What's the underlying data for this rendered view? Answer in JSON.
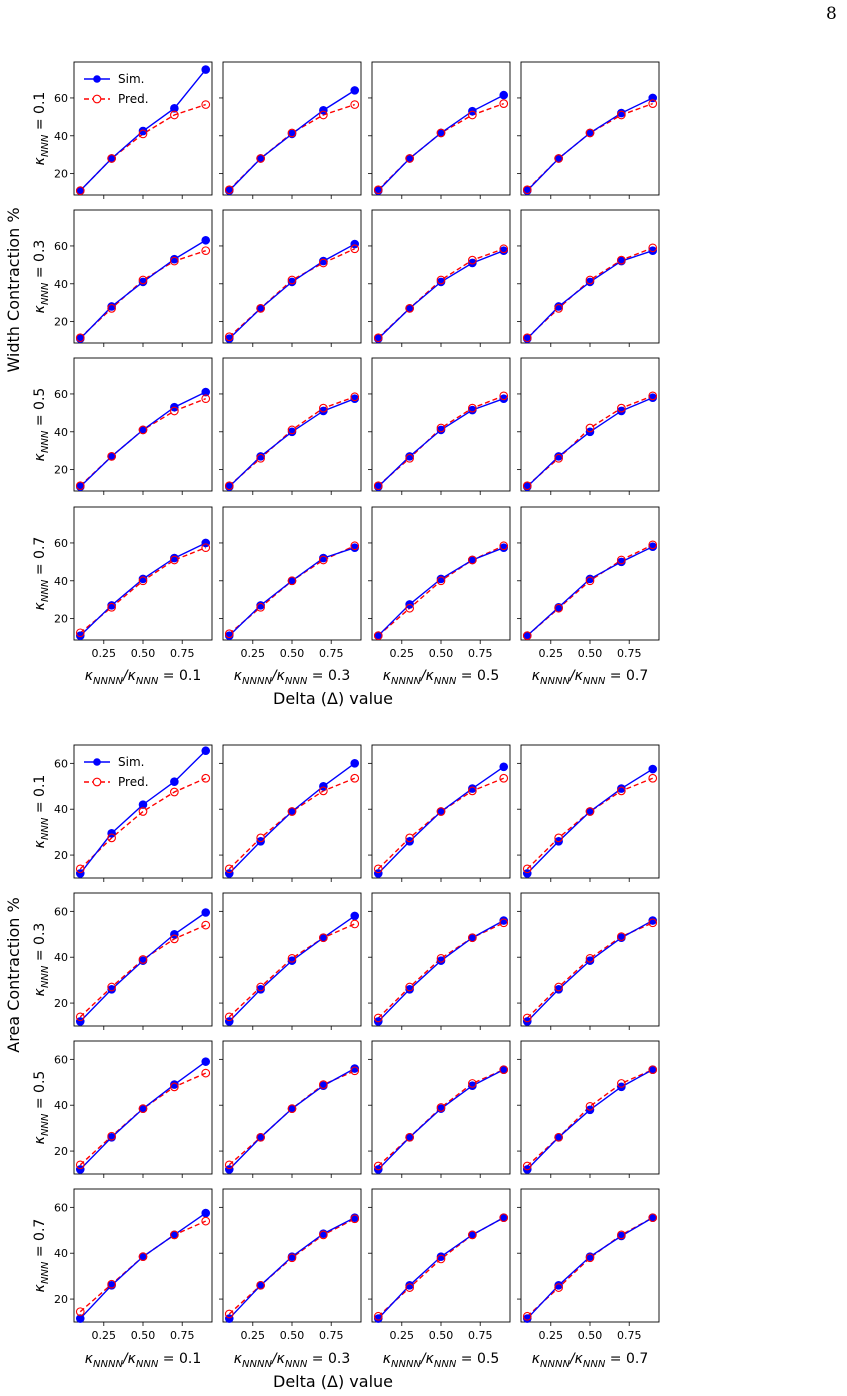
{
  "page_number": "8",
  "colors": {
    "sim": "#0000ff",
    "pred": "#ff0000"
  },
  "chart_data": [
    {
      "type": "line",
      "title": "",
      "ylabel": "Width Contraction %",
      "xlabel": "Delta (Δ) value",
      "row_labels": [
        {
          "sym": "κ",
          "sub": "NNN",
          "rest": " = 0.1"
        },
        {
          "sym": "κ",
          "sub": "NNN",
          "rest": " = 0.3"
        },
        {
          "sym": "κ",
          "sub": "NNN",
          "rest": " = 0.5"
        },
        {
          "sym": "κ",
          "sub": "NNN",
          "rest": " = 0.7"
        }
      ],
      "col_labels": [
        {
          "a": "κ",
          "asub": "NNNN",
          "b": "/κ",
          "bsub": "NNN",
          "rest": " = 0.1"
        },
        {
          "a": "κ",
          "asub": "NNNN",
          "b": "/κ",
          "bsub": "NNN",
          "rest": " = 0.3"
        },
        {
          "a": "κ",
          "asub": "NNNN",
          "b": "/κ",
          "bsub": "NNN",
          "rest": " = 0.5"
        },
        {
          "a": "κ",
          "asub": "NNNN",
          "b": "/κ",
          "bsub": "NNN",
          "rest": " = 0.7"
        }
      ],
      "x": [
        0.1,
        0.3,
        0.5,
        0.7,
        0.9
      ],
      "xticks": [
        0.25,
        0.5,
        0.75
      ],
      "xtick_labels": [
        "0.25",
        "0.50",
        "0.75"
      ],
      "xlim": [
        0.06,
        0.94
      ],
      "ylim": [
        8.7,
        79
      ],
      "yticks": [
        20,
        40,
        60
      ],
      "ytick_labels": [
        "20",
        "40",
        "60"
      ],
      "legend": {
        "placement": "top-left",
        "entries": [
          "Sim.",
          "Pred."
        ]
      },
      "grid": false,
      "panels": [
        [
          {
            "sim": [
              11,
              28,
              42.5,
              54.5,
              75
            ],
            "pred": [
              11,
              28,
              41,
              51,
              56.5
            ]
          },
          {
            "sim": [
              11,
              28,
              41,
              53.5,
              64
            ],
            "pred": [
              11.5,
              28,
              41.5,
              51,
              56.5
            ]
          },
          {
            "sim": [
              11,
              28,
              41.5,
              53,
              61.5
            ],
            "pred": [
              11.5,
              28,
              41.5,
              51,
              57
            ]
          },
          {
            "sim": [
              11,
              28,
              41.5,
              52,
              60
            ],
            "pred": [
              11.5,
              28,
              41.5,
              51,
              57
            ]
          }
        ],
        [
          {
            "sim": [
              11,
              28,
              41,
              53,
              63
            ],
            "pred": [
              11.5,
              27,
              42,
              52,
              57.5
            ]
          },
          {
            "sim": [
              11,
              27,
              41,
              52,
              61
            ],
            "pred": [
              12,
              27,
              42,
              51,
              58.5
            ]
          },
          {
            "sim": [
              11,
              27,
              41,
              51,
              57.5
            ],
            "pred": [
              11.5,
              27,
              42,
              52.5,
              58.5
            ]
          },
          {
            "sim": [
              11,
              28,
              41,
              52,
              57.5
            ],
            "pred": [
              11.5,
              27,
              42,
              52.5,
              59
            ]
          }
        ],
        [
          {
            "sim": [
              11,
              27,
              41,
              53,
              61
            ],
            "pred": [
              11.5,
              27,
              41,
              51,
              57.5
            ]
          },
          {
            "sim": [
              11,
              27,
              40,
              51,
              57.5
            ],
            "pred": [
              11.5,
              26,
              41,
              52.5,
              58.5
            ]
          },
          {
            "sim": [
              11,
              27,
              41,
              51.5,
              57.5
            ],
            "pred": [
              11.5,
              26,
              42,
              52.5,
              59
            ]
          },
          {
            "sim": [
              11,
              27,
              40,
              51,
              58
            ],
            "pred": [
              11.5,
              26,
              42,
              52.5,
              59
            ]
          }
        ],
        [
          {
            "sim": [
              11,
              27,
              41,
              52,
              60
            ],
            "pred": [
              12.5,
              26,
              40,
              51,
              57.5
            ]
          },
          {
            "sim": [
              11,
              27,
              40,
              52,
              57.5
            ],
            "pred": [
              12,
              26,
              40,
              51,
              58.5
            ]
          },
          {
            "sim": [
              11,
              27.5,
              41,
              51,
              57.5
            ],
            "pred": [
              11,
              25.5,
              40,
              51,
              58.5
            ]
          },
          {
            "sim": [
              11,
              26,
              41,
              50,
              58
            ],
            "pred": [
              11,
              25.5,
              40,
              51,
              59
            ]
          }
        ]
      ]
    },
    {
      "type": "line",
      "title": "",
      "ylabel": "Area Contraction %",
      "xlabel": "Delta (Δ) value",
      "row_labels": [
        {
          "sym": "κ",
          "sub": "NNN",
          "rest": " = 0.1"
        },
        {
          "sym": "κ",
          "sub": "NNN",
          "rest": " = 0.3"
        },
        {
          "sym": "κ",
          "sub": "NNN",
          "rest": " = 0.5"
        },
        {
          "sym": "κ",
          "sub": "NNN",
          "rest": " = 0.7"
        }
      ],
      "col_labels": [
        {
          "a": "κ",
          "asub": "NNNN",
          "b": "/κ",
          "bsub": "NNN",
          "rest": " = 0.1"
        },
        {
          "a": "κ",
          "asub": "NNNN",
          "b": "/κ",
          "bsub": "NNN",
          "rest": " = 0.3"
        },
        {
          "a": "κ",
          "asub": "NNNN",
          "b": "/κ",
          "bsub": "NNN",
          "rest": " = 0.5"
        },
        {
          "a": "κ",
          "asub": "NNNN",
          "b": "/κ",
          "bsub": "NNN",
          "rest": " = 0.7"
        }
      ],
      "x": [
        0.1,
        0.3,
        0.5,
        0.7,
        0.9
      ],
      "xticks": [
        0.25,
        0.5,
        0.75
      ],
      "xtick_labels": [
        "0.25",
        "0.50",
        "0.75"
      ],
      "xlim": [
        0.06,
        0.94
      ],
      "ylim": [
        10,
        68
      ],
      "yticks": [
        20,
        40,
        60
      ],
      "ytick_labels": [
        "20",
        "40",
        "60"
      ],
      "legend": {
        "placement": "top-left",
        "entries": [
          "Sim.",
          "Pred."
        ]
      },
      "grid": false,
      "panels": [
        [
          {
            "sim": [
              12,
              29.5,
              42,
              52,
              65.5
            ],
            "pred": [
              14,
              27.5,
              39,
              47.5,
              53.5
            ]
          },
          {
            "sim": [
              12,
              26,
              39,
              50,
              60
            ],
            "pred": [
              14,
              27.5,
              39,
              48,
              53.5
            ]
          },
          {
            "sim": [
              12,
              26,
              39,
              49,
              58.5
            ],
            "pred": [
              14,
              27.5,
              39,
              48,
              53.5
            ]
          },
          {
            "sim": [
              12,
              26,
              39,
              49,
              57.5
            ],
            "pred": [
              14,
              27.5,
              39,
              48,
              53.5
            ]
          }
        ],
        [
          {
            "sim": [
              12,
              26,
              38.5,
              50,
              59.5
            ],
            "pred": [
              14,
              27,
              39,
              48,
              54
            ]
          },
          {
            "sim": [
              12,
              26,
              38.5,
              48.5,
              58
            ],
            "pred": [
              14,
              27,
              39.5,
              48.5,
              54.5
            ]
          },
          {
            "sim": [
              12,
              26,
              38.5,
              48.5,
              56
            ],
            "pred": [
              13.5,
              27,
              39.5,
              48.5,
              55
            ]
          },
          {
            "sim": [
              12,
              26,
              38.5,
              48.5,
              56
            ],
            "pred": [
              13.5,
              27,
              39.5,
              49,
              55
            ]
          }
        ],
        [
          {
            "sim": [
              12,
              26,
              38.5,
              49,
              59
            ],
            "pred": [
              14,
              26.5,
              38.5,
              48,
              54
            ]
          },
          {
            "sim": [
              12,
              26,
              38.5,
              48.5,
              56
            ],
            "pred": [
              14,
              26,
              38.5,
              49,
              55
            ]
          },
          {
            "sim": [
              12,
              26,
              38.5,
              48.5,
              55.5
            ],
            "pred": [
              13.5,
              26,
              39,
              49.5,
              55.5
            ]
          },
          {
            "sim": [
              12,
              26,
              38,
              48,
              55.5
            ],
            "pred": [
              13.5,
              26,
              39.5,
              49.5,
              55.5
            ]
          }
        ],
        [
          {
            "sim": [
              11.5,
              26,
              38.5,
              48,
              57.5
            ],
            "pred": [
              14.5,
              26.5,
              38.5,
              48,
              54
            ]
          },
          {
            "sim": [
              11.5,
              26,
              38.5,
              48.5,
              55.5
            ],
            "pred": [
              13.5,
              26,
              38,
              48,
              55
            ]
          },
          {
            "sim": [
              11.5,
              26,
              38.5,
              48,
              55.5
            ],
            "pred": [
              12.5,
              25,
              37.5,
              48,
              55.5
            ]
          },
          {
            "sim": [
              11.5,
              26,
              38.5,
              47.5,
              55.5
            ],
            "pred": [
              12.5,
              25,
              38,
              48,
              55.5
            ]
          }
        ]
      ]
    }
  ]
}
